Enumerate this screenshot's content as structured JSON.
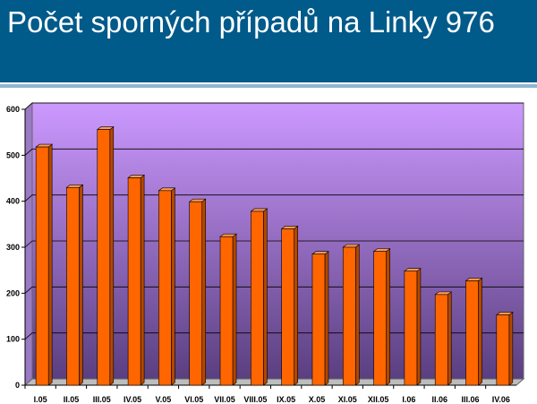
{
  "header": {
    "title": "Počet sporných případů na Linky 976"
  },
  "colors": {
    "header_bg": "#005a8a",
    "bar_front": "#ff6600",
    "bar_side": "#b34700",
    "bar_top": "#ff9a55",
    "plot_top": "#cc99ff",
    "plot_bottom": "#5a3f80",
    "gridline": "#000000"
  },
  "chart_data": {
    "type": "bar",
    "title": "",
    "xlabel": "",
    "ylabel": "",
    "ylim": [
      0,
      600
    ],
    "yticks": [
      0,
      100,
      200,
      300,
      400,
      500,
      600
    ],
    "grid": true,
    "categories": [
      "I.05",
      "II.05",
      "III.05",
      "IV.05",
      "V.05",
      "VI.05",
      "VII.05",
      "VIII.05",
      "IX.05",
      "X.05",
      "XI.05",
      "XII.05",
      "I.06",
      "II.06",
      "III.06",
      "IV.06"
    ],
    "values": [
      518,
      430,
      556,
      451,
      423,
      399,
      323,
      378,
      340,
      285,
      300,
      291,
      248,
      197,
      227,
      153
    ]
  }
}
